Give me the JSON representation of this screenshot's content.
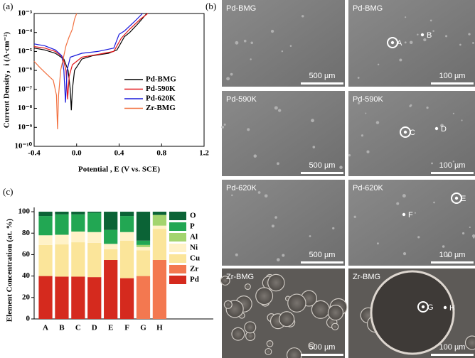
{
  "panel_labels": [
    "(a)",
    "(b)",
    "(c)"
  ],
  "chart_data": [
    {
      "type": "line",
      "log_y": true,
      "xlabel": "Potential , E (V vs. SCE)",
      "ylabel": "Current Density，i (A·cm⁻²)",
      "xlim": [
        -0.4,
        1.2
      ],
      "xticks": [
        -0.4,
        {
          "value": 0,
          "label": "0.0"
        },
        0.4,
        0.8,
        1.2
      ],
      "ylim": [
        1e-10,
        0.001
      ],
      "yticks": [
        {
          "value": 1e-10,
          "label": "10⁻¹⁰"
        },
        {
          "value": 1e-09,
          "label": "10⁻⁹"
        },
        {
          "value": 1e-08,
          "label": "10⁻⁸"
        },
        {
          "value": 1e-07,
          "label": "10⁻⁷"
        },
        {
          "value": 1e-06,
          "label": "10⁻⁶"
        },
        {
          "value": 1e-05,
          "label": "10⁻⁵"
        },
        {
          "value": 0.0001,
          "label": "10⁻⁴"
        },
        {
          "value": 0.001,
          "label": "10⁻³"
        }
      ],
      "series": [
        {
          "name": "Pd-BMG",
          "color": "#000000",
          "x": [
            -0.4,
            -0.3,
            -0.2,
            -0.12,
            -0.08,
            -0.06,
            -0.05,
            -0.04,
            -0.02,
            0.05,
            0.15,
            0.3,
            0.38,
            0.45,
            0.5,
            0.58,
            0.66
          ],
          "values": [
            1.5e-05,
            1.2e-05,
            8e-06,
            4e-06,
            1e-06,
            1e-07,
            8e-09,
            1e-07,
            1e-06,
            4e-06,
            6e-06,
            8e-06,
            1.2e-05,
            6e-05,
            0.0001,
            0.0003,
            0.001
          ]
        },
        {
          "name": "Pd-590K",
          "color": "#e3171b",
          "x": [
            -0.4,
            -0.3,
            -0.2,
            -0.13,
            -0.1,
            -0.085,
            -0.07,
            -0.04,
            0.05,
            0.2,
            0.35,
            0.42,
            0.5,
            0.6,
            0.67
          ],
          "values": [
            1.8e-05,
            1.5e-05,
            1e-05,
            5e-06,
            1e-06,
            3e-08,
            5e-07,
            2e-06,
            5e-06,
            7e-06,
            1e-05,
            5e-05,
            0.00015,
            0.0005,
            0.001
          ]
        },
        {
          "name": "Pd-620K",
          "color": "#1a1adb",
          "x": [
            -0.4,
            -0.3,
            -0.2,
            -0.14,
            -0.12,
            -0.105,
            -0.09,
            -0.06,
            0.05,
            0.2,
            0.35,
            0.4,
            0.45,
            0.55,
            0.62
          ],
          "values": [
            2.5e-05,
            2e-05,
            1.2e-05,
            6e-06,
            1e-06,
            2e-08,
            1e-06,
            5e-06,
            8e-06,
            1e-05,
            1.5e-05,
            8e-05,
            0.00012,
            0.0004,
            0.001
          ]
        },
        {
          "name": "Zr-BMG",
          "color": "#f2703f",
          "x": [
            -0.4,
            -0.35,
            -0.3,
            -0.22,
            -0.19,
            -0.18,
            -0.17,
            -0.15,
            -0.1,
            -0.07,
            -0.04,
            -0.02,
            0.0
          ],
          "values": [
            3e-06,
            1.5e-06,
            8e-07,
            3e-07,
            5e-08,
            8e-10,
            5e-08,
            1e-06,
            2e-05,
            6e-05,
            0.00015,
            0.0005,
            0.001
          ]
        }
      ]
    },
    {
      "type": "stacked_bar",
      "ylabel": "Element Concentration (at. %)",
      "categories": [
        "A",
        "B",
        "C",
        "D",
        "E",
        "F",
        "G",
        "H"
      ],
      "ylim": [
        0,
        104
      ],
      "yticks": [
        0,
        20,
        40,
        60,
        80,
        100
      ],
      "series": [
        {
          "name": "Pd",
          "color": "#d52a1e",
          "values": [
            40,
            39.5,
            39.5,
            39,
            55,
            38,
            0,
            0
          ]
        },
        {
          "name": "Zr",
          "color": "#f37850",
          "values": [
            0,
            0,
            0,
            0,
            0,
            0,
            40,
            55
          ]
        },
        {
          "name": "Cu",
          "color": "#fbe59a",
          "values": [
            29,
            30,
            32,
            32,
            10,
            35,
            24,
            29
          ]
        },
        {
          "name": "Ni",
          "color": "#fff2c8",
          "values": [
            9,
            9,
            10,
            10,
            5,
            8,
            3,
            3
          ]
        },
        {
          "name": "Al",
          "color": "#a3d46e",
          "values": [
            0,
            0,
            0,
            0,
            0,
            0,
            2,
            10
          ]
        },
        {
          "name": "P",
          "color": "#22a753",
          "values": [
            18,
            19,
            16,
            18,
            13,
            15,
            4,
            0
          ]
        },
        {
          "name": "O",
          "color": "#0b6336",
          "values": [
            4,
            2.5,
            2.5,
            1,
            17,
            4,
            27,
            3
          ]
        }
      ]
    }
  ],
  "sem_images": [
    {
      "label": "Pd-BMG",
      "scale_bar": "500 µm",
      "markers": []
    },
    {
      "label": "Pd-BMG",
      "scale_bar": "100 µm",
      "markers": [
        "A",
        "B"
      ]
    },
    {
      "label": "Pd-590K",
      "scale_bar": "500 µm",
      "markers": []
    },
    {
      "label": "Pd-590K",
      "scale_bar": "100 µm",
      "markers": [
        "C",
        "D"
      ]
    },
    {
      "label": "Pd-620K",
      "scale_bar": "500 µm",
      "markers": []
    },
    {
      "label": "Pd-620K",
      "scale_bar": "100 µm",
      "markers": [
        "E",
        "F"
      ]
    },
    {
      "label": "Zr-BMG",
      "scale_bar": "500 µm",
      "markers": []
    },
    {
      "label": "Zr-BMG",
      "scale_bar": "100 µm",
      "markers": [
        "G",
        "H"
      ]
    }
  ]
}
